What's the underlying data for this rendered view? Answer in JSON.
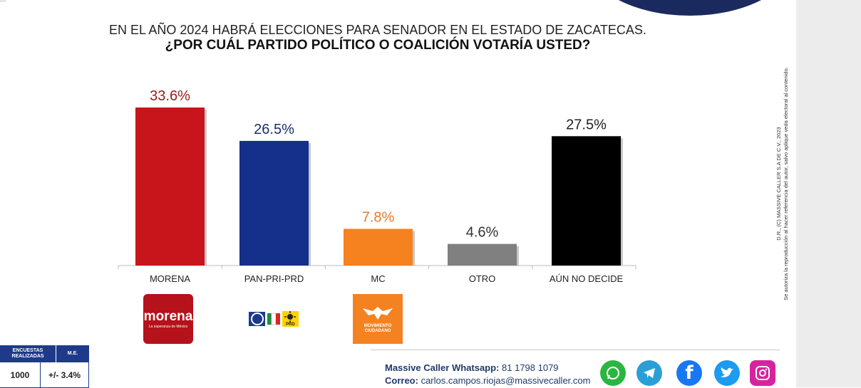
{
  "header_fragment": "...",
  "title_line1": "EN EL AÑO 2024 HABRÁ ELECCIONES PARA SENADOR EN EL ESTADO DE ZACATECAS.",
  "title_line2": "¿POR CUÁL PARTIDO POLÍTICO O COALICIÓN  VOTARÍA USTED?",
  "chart_data": {
    "type": "bar",
    "categories": [
      "MORENA",
      "PAN-PRI-PRD",
      "MC",
      "OTRO",
      "AÚN NO DECIDE"
    ],
    "values": [
      33.6,
      26.5,
      7.8,
      4.6,
      27.5
    ],
    "value_labels": [
      "33.6%",
      "26.5%",
      "7.8%",
      "4.6%",
      "27.5%"
    ],
    "colors": [
      "#c8151b",
      "#15308a",
      "#f5821f",
      "#808080",
      "#000000"
    ],
    "label_colors": [
      "#9b1b1b",
      "#1a2f6b",
      "#e67a2a",
      "#333333",
      "#222222"
    ],
    "ylim": [
      0,
      33.6
    ],
    "grid": false,
    "legend": "none"
  },
  "logos": {
    "morena_name": "morena",
    "morena_tagline": "La esperanza de México",
    "prd_label": "PRD",
    "pan_label": "PAN",
    "pri_label": "PRI",
    "mc_label": "MOVIMIENTO CIUDADANO"
  },
  "side_note": {
    "line1": "D.R., (C) MASSIVE CALLER S.A DE C.V., 2023",
    "line2": "Se autoriza la reproducción al hacer referencia del autor, salvo aplique veda electoral al contenido."
  },
  "survey_table": {
    "col1_header": "ENCUESTAS REALIZADAS",
    "col2_header": "M.E.",
    "col1_value": "1000",
    "col2_value": "+/- 3.4%"
  },
  "contact": {
    "whatsapp_label": "Massive Caller Whatsapp:",
    "whatsapp_number": "81 1798 1079",
    "email_label": "Correo:",
    "email": "carlos.campos.riojas@massivecaller.com"
  },
  "social_icons": [
    "whatsapp-icon",
    "telegram-icon",
    "facebook-icon",
    "twitter-icon",
    "instagram-icon"
  ]
}
